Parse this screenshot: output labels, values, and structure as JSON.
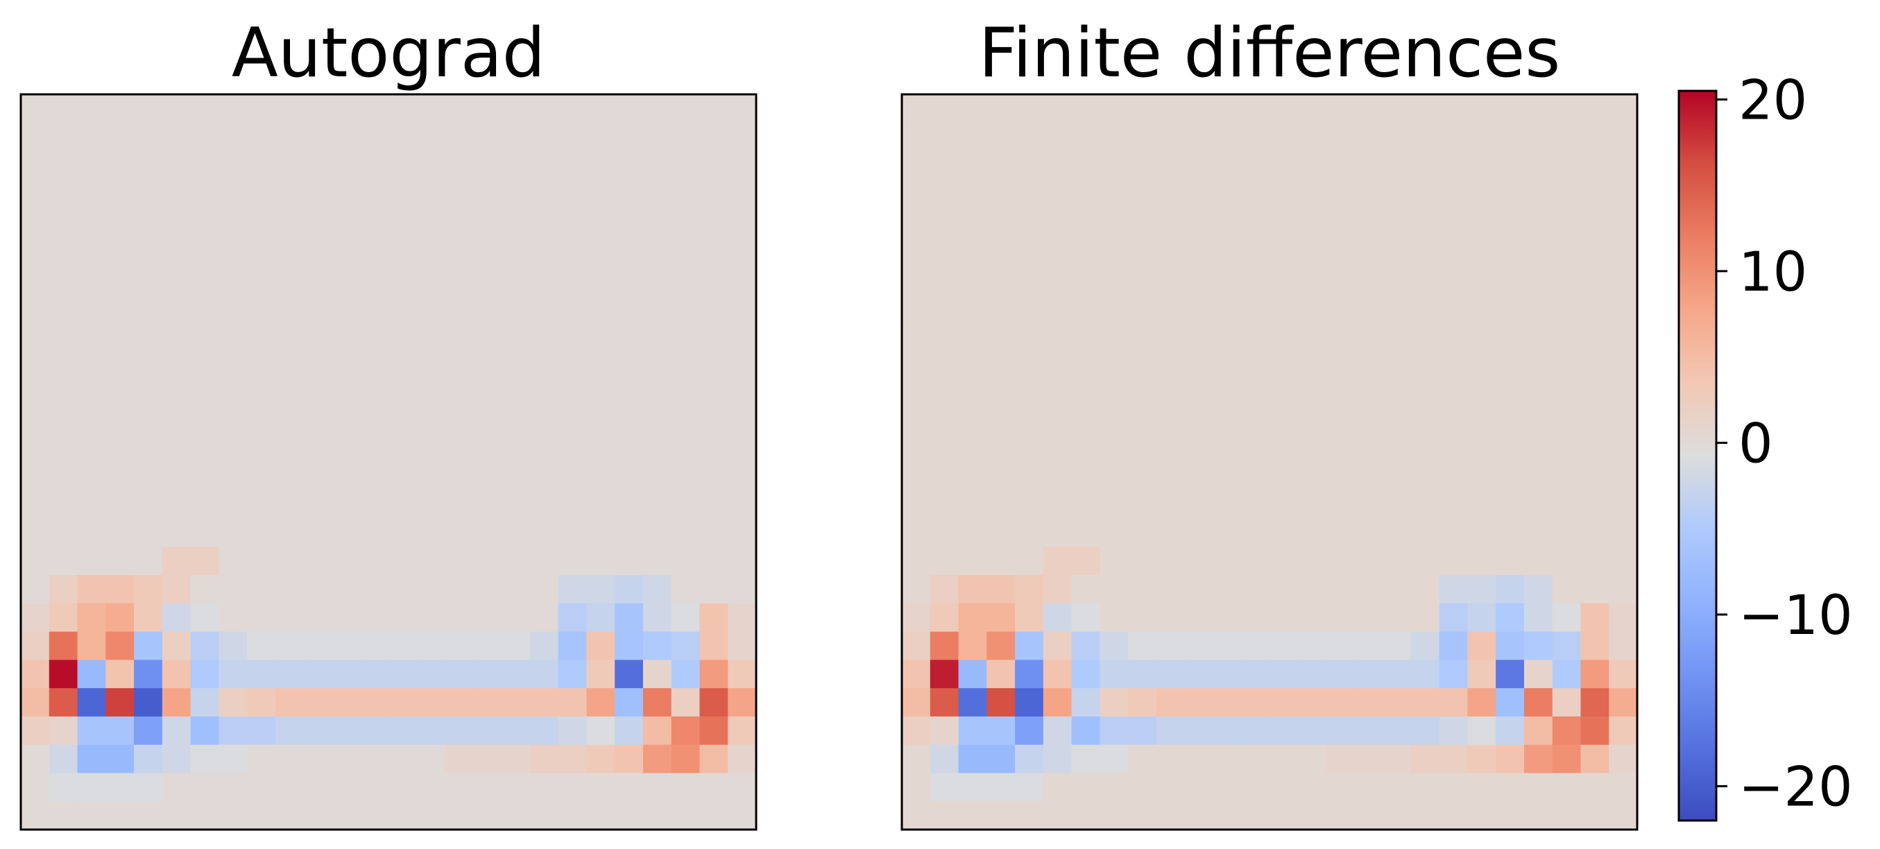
{
  "chart_data": [
    {
      "type": "heatmap",
      "title": "Autograd",
      "rows": 26,
      "cols": 26,
      "xticks": false,
      "yticks": false,
      "colormap": "coolwarm",
      "vmin": -22,
      "vmax": 20.5,
      "background_value": 0,
      "cells": [
        [
          16,
          5,
          2
        ],
        [
          16,
          6,
          2
        ],
        [
          17,
          1,
          2
        ],
        [
          17,
          2,
          4
        ],
        [
          17,
          3,
          4
        ],
        [
          17,
          4,
          3
        ],
        [
          17,
          5,
          2
        ],
        [
          17,
          19,
          -2
        ],
        [
          17,
          20,
          -2
        ],
        [
          17,
          21,
          -3
        ],
        [
          17,
          22,
          -2
        ],
        [
          18,
          0,
          1
        ],
        [
          18,
          1,
          3
        ],
        [
          18,
          2,
          6
        ],
        [
          18,
          3,
          7
        ],
        [
          18,
          4,
          3
        ],
        [
          18,
          5,
          -2
        ],
        [
          18,
          6,
          -1
        ],
        [
          18,
          19,
          -4
        ],
        [
          18,
          20,
          -3
        ],
        [
          18,
          21,
          -6
        ],
        [
          18,
          22,
          -2
        ],
        [
          18,
          23,
          -1
        ],
        [
          18,
          24,
          4
        ],
        [
          18,
          25,
          1
        ],
        [
          19,
          0,
          2
        ],
        [
          19,
          1,
          13
        ],
        [
          19,
          2,
          6
        ],
        [
          19,
          3,
          11
        ],
        [
          19,
          4,
          -6
        ],
        [
          19,
          5,
          2
        ],
        [
          19,
          6,
          -4
        ],
        [
          19,
          7,
          -2
        ],
        [
          19,
          8,
          -1
        ],
        [
          19,
          9,
          -1
        ],
        [
          19,
          10,
          -1
        ],
        [
          19,
          11,
          -1
        ],
        [
          19,
          12,
          -1
        ],
        [
          19,
          13,
          -1
        ],
        [
          19,
          14,
          -1
        ],
        [
          19,
          15,
          -1
        ],
        [
          19,
          16,
          -1
        ],
        [
          19,
          17,
          -1
        ],
        [
          19,
          18,
          -2
        ],
        [
          19,
          19,
          -6
        ],
        [
          19,
          20,
          4
        ],
        [
          19,
          21,
          -6
        ],
        [
          19,
          22,
          -5
        ],
        [
          19,
          23,
          -4
        ],
        [
          19,
          24,
          4
        ],
        [
          19,
          25,
          1
        ],
        [
          20,
          0,
          4
        ],
        [
          20,
          1,
          20
        ],
        [
          20,
          2,
          -8
        ],
        [
          20,
          3,
          4
        ],
        [
          20,
          4,
          -14
        ],
        [
          20,
          5,
          4
        ],
        [
          20,
          6,
          -5
        ],
        [
          20,
          7,
          -3
        ],
        [
          20,
          8,
          -3
        ],
        [
          20,
          9,
          -3
        ],
        [
          20,
          10,
          -3
        ],
        [
          20,
          11,
          -3
        ],
        [
          20,
          12,
          -3
        ],
        [
          20,
          13,
          -3
        ],
        [
          20,
          14,
          -3
        ],
        [
          20,
          15,
          -3
        ],
        [
          20,
          16,
          -3
        ],
        [
          20,
          17,
          -3
        ],
        [
          20,
          18,
          -3
        ],
        [
          20,
          19,
          -5
        ],
        [
          20,
          20,
          3
        ],
        [
          20,
          21,
          -18
        ],
        [
          20,
          22,
          1
        ],
        [
          20,
          23,
          -5
        ],
        [
          20,
          24,
          9
        ],
        [
          20,
          25,
          3
        ],
        [
          21,
          0,
          5
        ],
        [
          21,
          1,
          15
        ],
        [
          21,
          2,
          -19
        ],
        [
          21,
          3,
          17
        ],
        [
          21,
          4,
          -20
        ],
        [
          21,
          5,
          8
        ],
        [
          21,
          6,
          -3
        ],
        [
          21,
          7,
          2
        ],
        [
          21,
          8,
          3
        ],
        [
          21,
          9,
          4
        ],
        [
          21,
          10,
          4
        ],
        [
          21,
          11,
          4
        ],
        [
          21,
          12,
          4
        ],
        [
          21,
          13,
          4
        ],
        [
          21,
          14,
          4
        ],
        [
          21,
          15,
          4
        ],
        [
          21,
          16,
          4
        ],
        [
          21,
          17,
          4
        ],
        [
          21,
          18,
          4
        ],
        [
          21,
          19,
          4
        ],
        [
          21,
          20,
          8
        ],
        [
          21,
          21,
          -7
        ],
        [
          21,
          22,
          12
        ],
        [
          21,
          23,
          2
        ],
        [
          21,
          24,
          15
        ],
        [
          21,
          25,
          8
        ],
        [
          22,
          0,
          2
        ],
        [
          22,
          1,
          1
        ],
        [
          22,
          2,
          -6
        ],
        [
          22,
          3,
          -6
        ],
        [
          22,
          4,
          -12
        ],
        [
          22,
          5,
          -2
        ],
        [
          22,
          6,
          -7
        ],
        [
          22,
          7,
          -4
        ],
        [
          22,
          8,
          -4
        ],
        [
          22,
          9,
          -3
        ],
        [
          22,
          10,
          -3
        ],
        [
          22,
          11,
          -3
        ],
        [
          22,
          12,
          -3
        ],
        [
          22,
          13,
          -3
        ],
        [
          22,
          14,
          -3
        ],
        [
          22,
          15,
          -3
        ],
        [
          22,
          16,
          -3
        ],
        [
          22,
          17,
          -3
        ],
        [
          22,
          18,
          -3
        ],
        [
          22,
          19,
          -2
        ],
        [
          22,
          20,
          -1
        ],
        [
          22,
          21,
          -3
        ],
        [
          22,
          22,
          5
        ],
        [
          22,
          23,
          11
        ],
        [
          22,
          24,
          13
        ],
        [
          22,
          25,
          3
        ],
        [
          23,
          1,
          -2
        ],
        [
          23,
          2,
          -8
        ],
        [
          23,
          3,
          -8
        ],
        [
          23,
          4,
          -3
        ],
        [
          23,
          5,
          -2
        ],
        [
          23,
          6,
          -1
        ],
        [
          23,
          7,
          -1
        ],
        [
          23,
          15,
          1
        ],
        [
          23,
          16,
          1
        ],
        [
          23,
          17,
          1
        ],
        [
          23,
          18,
          2
        ],
        [
          23,
          19,
          2
        ],
        [
          23,
          20,
          3
        ],
        [
          23,
          21,
          4
        ],
        [
          23,
          22,
          9
        ],
        [
          23,
          23,
          10
        ],
        [
          23,
          24,
          5
        ],
        [
          23,
          25,
          1
        ],
        [
          24,
          1,
          -1
        ],
        [
          24,
          2,
          -1
        ],
        [
          24,
          3,
          -1
        ],
        [
          24,
          4,
          -1
        ]
      ]
    },
    {
      "type": "heatmap",
      "title": "Finite differences",
      "rows": 26,
      "cols": 26,
      "xticks": false,
      "yticks": false,
      "colormap": "coolwarm",
      "vmin": -22,
      "vmax": 20.5,
      "background_value": 0.5,
      "cells": [
        [
          16,
          5,
          2
        ],
        [
          16,
          6,
          2
        ],
        [
          17,
          1,
          2
        ],
        [
          17,
          2,
          4
        ],
        [
          17,
          3,
          4
        ],
        [
          17,
          4,
          3
        ],
        [
          17,
          5,
          2
        ],
        [
          17,
          19,
          -2
        ],
        [
          17,
          20,
          -2
        ],
        [
          17,
          21,
          -3
        ],
        [
          17,
          22,
          -2
        ],
        [
          18,
          0,
          1
        ],
        [
          18,
          1,
          3
        ],
        [
          18,
          2,
          6
        ],
        [
          18,
          3,
          6
        ],
        [
          18,
          4,
          3
        ],
        [
          18,
          5,
          -2
        ],
        [
          18,
          6,
          -1
        ],
        [
          18,
          19,
          -4
        ],
        [
          18,
          20,
          -3
        ],
        [
          18,
          21,
          -5
        ],
        [
          18,
          22,
          -2
        ],
        [
          18,
          23,
          -1
        ],
        [
          18,
          24,
          4
        ],
        [
          18,
          25,
          1
        ],
        [
          19,
          0,
          2
        ],
        [
          19,
          1,
          12
        ],
        [
          19,
          2,
          6
        ],
        [
          19,
          3,
          10
        ],
        [
          19,
          4,
          -6
        ],
        [
          19,
          5,
          2
        ],
        [
          19,
          6,
          -4
        ],
        [
          19,
          7,
          -2
        ],
        [
          19,
          8,
          -1
        ],
        [
          19,
          9,
          -1
        ],
        [
          19,
          10,
          -1
        ],
        [
          19,
          11,
          -1
        ],
        [
          19,
          12,
          -1
        ],
        [
          19,
          13,
          -1
        ],
        [
          19,
          14,
          -1
        ],
        [
          19,
          15,
          -1
        ],
        [
          19,
          16,
          -1
        ],
        [
          19,
          17,
          -1
        ],
        [
          19,
          18,
          -2
        ],
        [
          19,
          19,
          -6
        ],
        [
          19,
          20,
          4
        ],
        [
          19,
          21,
          -6
        ],
        [
          19,
          22,
          -5
        ],
        [
          19,
          23,
          -4
        ],
        [
          19,
          24,
          4
        ],
        [
          19,
          25,
          1
        ],
        [
          20,
          0,
          4
        ],
        [
          20,
          1,
          19
        ],
        [
          20,
          2,
          -8
        ],
        [
          20,
          3,
          4
        ],
        [
          20,
          4,
          -14
        ],
        [
          20,
          5,
          4
        ],
        [
          20,
          6,
          -5
        ],
        [
          20,
          7,
          -3
        ],
        [
          20,
          8,
          -3
        ],
        [
          20,
          9,
          -3
        ],
        [
          20,
          10,
          -3
        ],
        [
          20,
          11,
          -3
        ],
        [
          20,
          12,
          -3
        ],
        [
          20,
          13,
          -3
        ],
        [
          20,
          14,
          -3
        ],
        [
          20,
          15,
          -3
        ],
        [
          20,
          16,
          -3
        ],
        [
          20,
          17,
          -3
        ],
        [
          20,
          18,
          -3
        ],
        [
          20,
          19,
          -5
        ],
        [
          20,
          20,
          3
        ],
        [
          20,
          21,
          -17
        ],
        [
          20,
          22,
          1
        ],
        [
          20,
          23,
          -5
        ],
        [
          20,
          24,
          9
        ],
        [
          20,
          25,
          3
        ],
        [
          21,
          0,
          5
        ],
        [
          21,
          1,
          15
        ],
        [
          21,
          2,
          -18
        ],
        [
          21,
          3,
          16
        ],
        [
          21,
          4,
          -19
        ],
        [
          21,
          5,
          8
        ],
        [
          21,
          6,
          -3
        ],
        [
          21,
          7,
          2
        ],
        [
          21,
          8,
          3
        ],
        [
          21,
          9,
          4
        ],
        [
          21,
          10,
          4
        ],
        [
          21,
          11,
          4
        ],
        [
          21,
          12,
          4
        ],
        [
          21,
          13,
          4
        ],
        [
          21,
          14,
          4
        ],
        [
          21,
          15,
          4
        ],
        [
          21,
          16,
          4
        ],
        [
          21,
          17,
          4
        ],
        [
          21,
          18,
          4
        ],
        [
          21,
          19,
          4
        ],
        [
          21,
          20,
          8
        ],
        [
          21,
          21,
          -7
        ],
        [
          21,
          22,
          12
        ],
        [
          21,
          23,
          2
        ],
        [
          21,
          24,
          14
        ],
        [
          21,
          25,
          7
        ],
        [
          22,
          0,
          2
        ],
        [
          22,
          1,
          1
        ],
        [
          22,
          2,
          -6
        ],
        [
          22,
          3,
          -6
        ],
        [
          22,
          4,
          -12
        ],
        [
          22,
          5,
          -2
        ],
        [
          22,
          6,
          -7
        ],
        [
          22,
          7,
          -4
        ],
        [
          22,
          8,
          -4
        ],
        [
          22,
          9,
          -3
        ],
        [
          22,
          10,
          -3
        ],
        [
          22,
          11,
          -3
        ],
        [
          22,
          12,
          -3
        ],
        [
          22,
          13,
          -3
        ],
        [
          22,
          14,
          -3
        ],
        [
          22,
          15,
          -3
        ],
        [
          22,
          16,
          -3
        ],
        [
          22,
          17,
          -3
        ],
        [
          22,
          18,
          -3
        ],
        [
          22,
          19,
          -2
        ],
        [
          22,
          20,
          -1
        ],
        [
          22,
          21,
          -3
        ],
        [
          22,
          22,
          5
        ],
        [
          22,
          23,
          11
        ],
        [
          22,
          24,
          13
        ],
        [
          22,
          25,
          3
        ],
        [
          23,
          1,
          -2
        ],
        [
          23,
          2,
          -8
        ],
        [
          23,
          3,
          -8
        ],
        [
          23,
          4,
          -3
        ],
        [
          23,
          5,
          -2
        ],
        [
          23,
          6,
          -1
        ],
        [
          23,
          7,
          -1
        ],
        [
          23,
          15,
          1
        ],
        [
          23,
          16,
          1
        ],
        [
          23,
          17,
          1
        ],
        [
          23,
          18,
          2
        ],
        [
          23,
          19,
          2
        ],
        [
          23,
          20,
          3
        ],
        [
          23,
          21,
          4
        ],
        [
          23,
          22,
          9
        ],
        [
          23,
          23,
          10
        ],
        [
          23,
          24,
          5
        ],
        [
          23,
          25,
          1
        ],
        [
          24,
          1,
          -1
        ],
        [
          24,
          2,
          -1
        ],
        [
          24,
          3,
          -1
        ],
        [
          24,
          4,
          -1
        ]
      ]
    }
  ],
  "colorbar": {
    "colormap": "coolwarm",
    "vmin": -22,
    "vmax": 20.5,
    "ticks": [
      {
        "value": 20,
        "label": "20"
      },
      {
        "value": 10,
        "label": "10"
      },
      {
        "value": 0,
        "label": "0"
      },
      {
        "value": -10,
        "label": "−10"
      },
      {
        "value": -20,
        "label": "−20"
      }
    ]
  }
}
